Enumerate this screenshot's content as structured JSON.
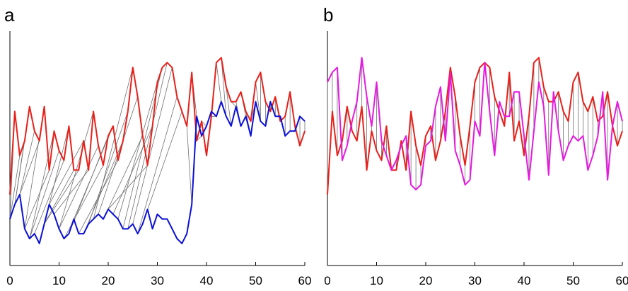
{
  "chart_data": [
    {
      "type": "line",
      "panel_label": "a",
      "xlim": [
        0,
        60
      ],
      "x_ticks": [
        "0",
        "10",
        "20",
        "30",
        "40",
        "50",
        "60"
      ],
      "grid": false,
      "series": [
        {
          "color": "#e8201a",
          "values": [
            -1.0,
            0.7,
            -0.2,
            0.1,
            0.8,
            0.3,
            0.1,
            0.8,
            -0.5,
            0.3,
            -0.1,
            -0.3,
            0.4,
            -0.5,
            -0.5,
            0.1,
            -0.5,
            0.7,
            0.0,
            -0.4,
            0.2,
            0.4,
            -0.3,
            0.1,
            0.7,
            1.6,
            1.0,
            0.2,
            -0.4,
            0.4,
            1.3,
            1.6,
            1.7,
            1.6,
            1.0,
            0.7,
            0.4,
            1.5,
            0.1,
            0.5,
            -0.2,
            0.6,
            1.7,
            1.8,
            1.2,
            0.9,
            0.9,
            1.1,
            0.7,
            0.5,
            1.3,
            1.5,
            0.9,
            0.7,
            1.0,
            0.5,
            0.6,
            1.1,
            0.4,
            0.0,
            0.3
          ]
        },
        {
          "color": "#0b10d8",
          "values": [
            -1.5,
            -1.2,
            -1.0,
            -1.7,
            -1.9,
            -1.8,
            -2.0,
            -1.6,
            -1.2,
            -1.4,
            -1.7,
            -1.9,
            -1.8,
            -1.5,
            -1.8,
            -1.8,
            -1.6,
            -1.5,
            -1.4,
            -1.5,
            -1.3,
            -1.4,
            -1.5,
            -1.7,
            -1.7,
            -1.6,
            -1.8,
            -1.6,
            -1.3,
            -1.7,
            -1.4,
            -1.5,
            -1.5,
            -1.7,
            -1.9,
            -2.0,
            -1.8,
            -1.2,
            0.6,
            0.2,
            0.4,
            0.7,
            0.6,
            0.9,
            0.6,
            0.4,
            0.8,
            0.4,
            0.6,
            0.2,
            0.9,
            0.5,
            0.4,
            0.9,
            0.6,
            0.6,
            0.2,
            0.3,
            0.3,
            0.6,
            0.5
          ]
        }
      ]
    },
    {
      "type": "line",
      "panel_label": "b",
      "xlim": [
        0,
        60
      ],
      "x_ticks": [
        "0",
        "10",
        "20",
        "30",
        "40",
        "50",
        "60"
      ],
      "grid": false,
      "series": [
        {
          "color": "#e8201a",
          "values": [
            -1.0,
            0.7,
            -0.2,
            0.1,
            0.8,
            0.3,
            0.1,
            0.8,
            -0.5,
            0.3,
            -0.1,
            -0.3,
            0.4,
            -0.5,
            -0.5,
            0.1,
            -0.5,
            0.7,
            0.0,
            -0.4,
            0.2,
            0.4,
            -0.3,
            0.1,
            0.7,
            1.6,
            1.0,
            0.2,
            -0.4,
            0.4,
            1.3,
            1.6,
            1.7,
            1.6,
            1.0,
            0.7,
            0.4,
            1.5,
            0.1,
            0.5,
            -0.2,
            0.6,
            1.7,
            1.8,
            1.2,
            0.9,
            0.9,
            1.1,
            0.7,
            0.5,
            1.3,
            1.5,
            0.9,
            0.7,
            1.0,
            0.5,
            0.6,
            1.1,
            0.4,
            0.0,
            0.3
          ]
        },
        {
          "color": "#e619e0",
          "values": [
            1.3,
            1.5,
            1.6,
            -0.3,
            0.0,
            0.5,
            0.9,
            1.8,
            1.0,
            0.4,
            1.3,
            0.1,
            -0.2,
            -0.5,
            -0.3,
            0.0,
            0.2,
            -0.8,
            -0.9,
            -0.8,
            0.0,
            0.1,
            0.8,
            1.2,
            0.1,
            1.5,
            -0.1,
            -0.4,
            -0.8,
            -0.7,
            0.5,
            0.2,
            1.7,
            0.7,
            -0.2,
            0.9,
            0.6,
            0.6,
            1.1,
            1.1,
            0.2,
            -0.7,
            0.3,
            1.3,
            0.8,
            -0.6,
            1.1,
            0.3,
            -0.3,
            0.0,
            0.2,
            0.1,
            0.2,
            -0.5,
            -0.2,
            0.2,
            1.1,
            -0.7,
            0.4,
            0.9,
            0.5
          ]
        }
      ]
    }
  ]
}
